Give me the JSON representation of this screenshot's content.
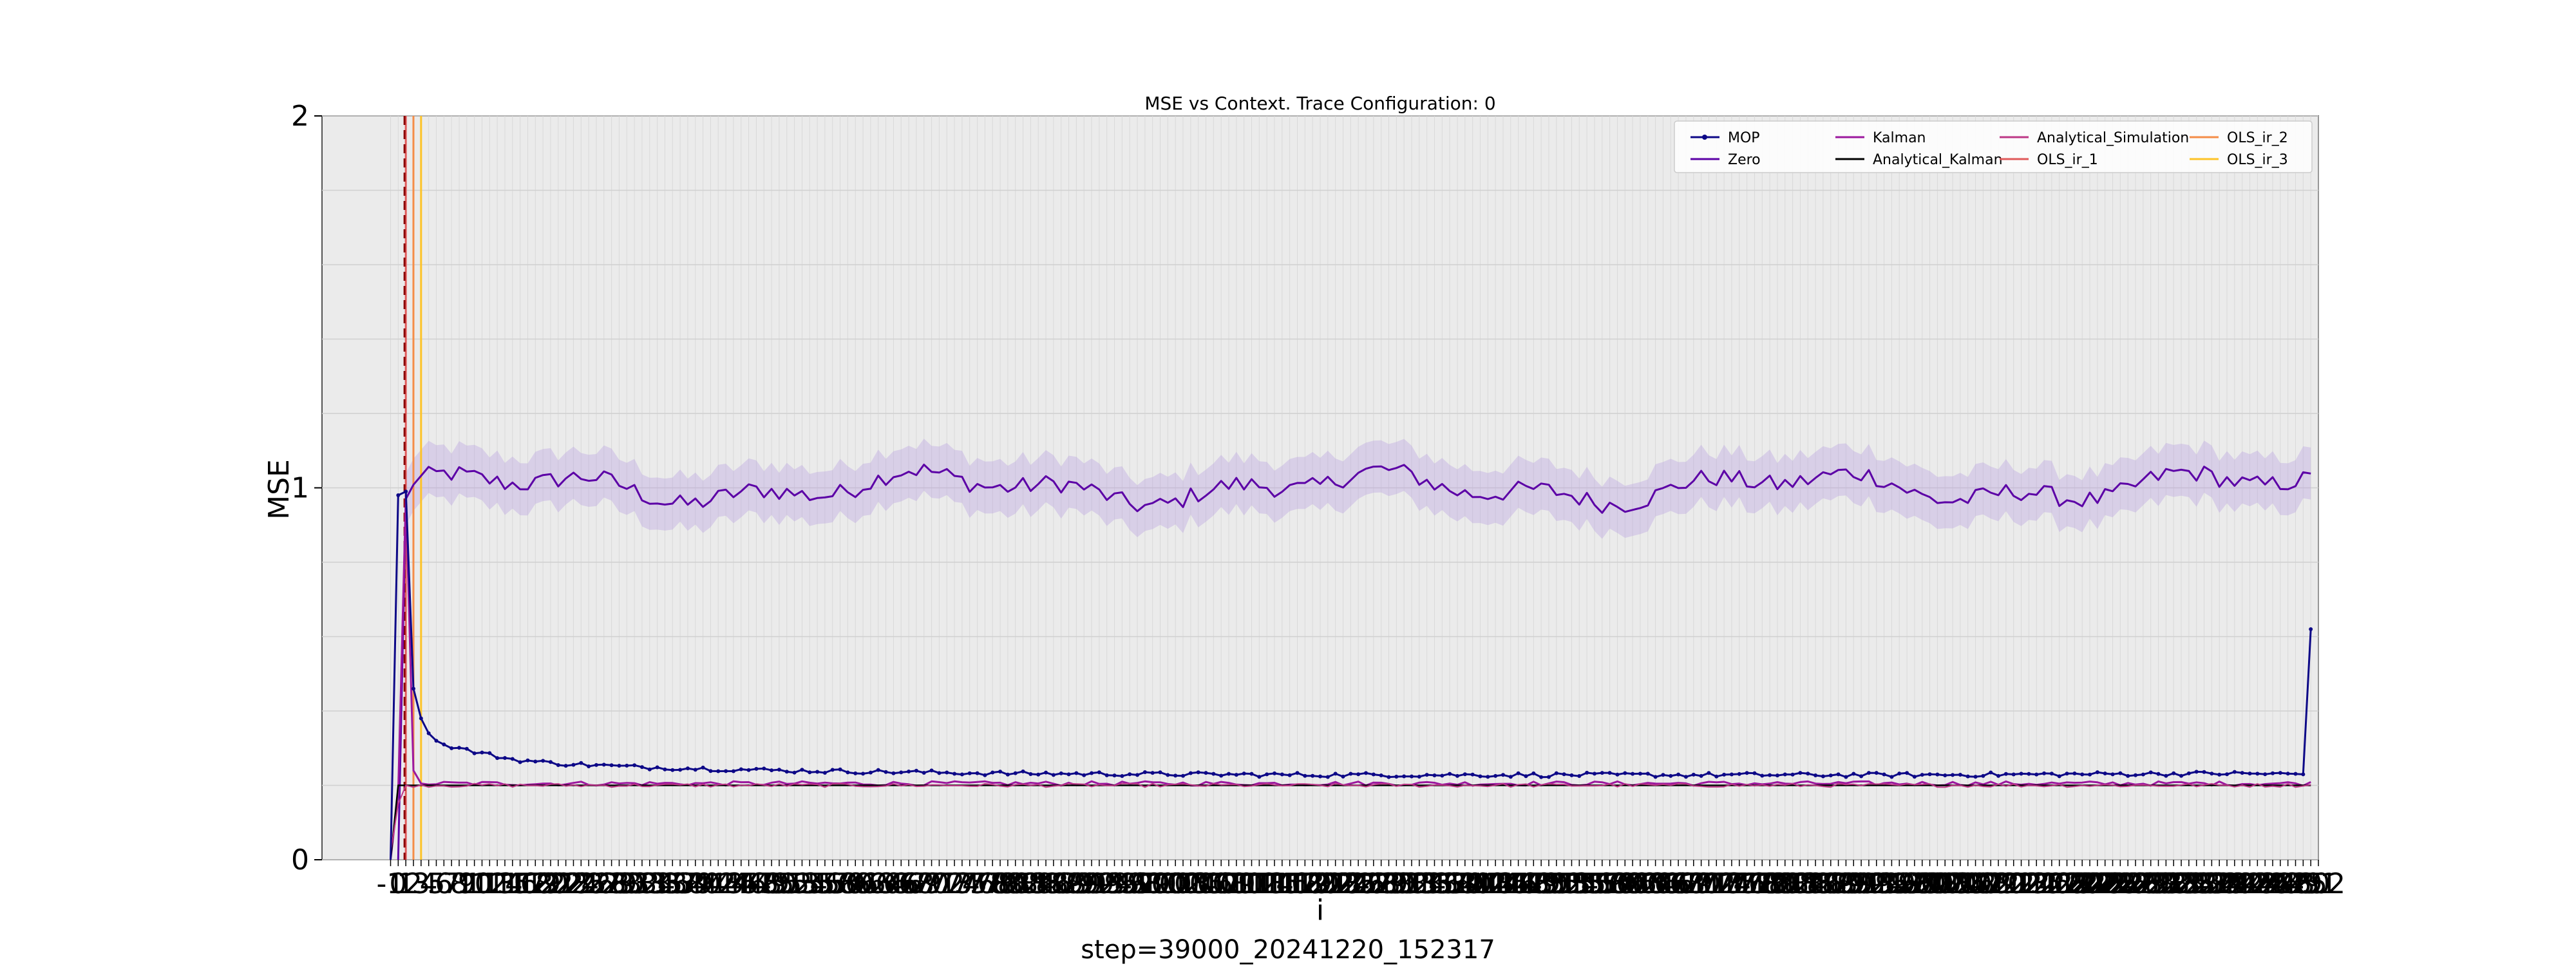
{
  "chart_data": {
    "type": "line",
    "title": "MSE vs Context. Trace Configuration: 0",
    "xlabel": "i",
    "ylabel": "MSE",
    "footer": "step=39000_20241220_152317",
    "xlim": [
      -10,
      252
    ],
    "ylim": [
      0,
      2
    ],
    "yticks": [
      "0",
      "1",
      "2"
    ],
    "xtick_labels_note": "dense overlapping integer ticks from -1 to 252",
    "grid": true,
    "legend_position": "top-right",
    "legend_columns": 4,
    "series": [
      {
        "name": "MOP",
        "color": "#0d0887",
        "marker": "dot",
        "kind": "mop"
      },
      {
        "name": "Zero",
        "color": "#5c01a6",
        "kind": "zero"
      },
      {
        "name": "Kalman",
        "color": "#9c179e",
        "kind": "kalman"
      },
      {
        "name": "Analytical_Kalman",
        "color": "#000000",
        "kind": "analytical_kalman"
      },
      {
        "name": "Analytical_Simulation",
        "color": "#bd3786",
        "kind": "analytical_sim"
      },
      {
        "name": "OLS_ir_1",
        "color": "#e05a5a",
        "kind": "ols_vline",
        "x": 1
      },
      {
        "name": "OLS_ir_2",
        "color": "#f58d48",
        "kind": "ols_vline",
        "x": 2
      },
      {
        "name": "OLS_ir_3",
        "color": "#fdc328",
        "kind": "ols_vline",
        "x": 3
      }
    ],
    "dashed_vline_x": 1,
    "zero_mean_approx": 1.0,
    "zero_band_halfwidth": 0.07,
    "mop_start": [
      [
        0,
        0.98
      ],
      [
        1,
        0.99
      ],
      [
        2,
        0.46
      ],
      [
        3,
        0.38
      ],
      [
        4,
        0.34
      ],
      [
        5,
        0.32
      ],
      [
        6,
        0.31
      ],
      [
        8,
        0.3
      ],
      [
        10,
        0.29
      ],
      [
        15,
        0.27
      ],
      [
        20,
        0.26
      ],
      [
        30,
        0.25
      ],
      [
        50,
        0.24
      ],
      [
        80,
        0.232
      ],
      [
        120,
        0.228
      ],
      [
        200,
        0.228
      ],
      [
        240,
        0.232
      ],
      [
        250,
        0.23
      ],
      [
        251,
        0.62
      ]
    ],
    "kalman_value": 0.205,
    "analytical_kalman_value": 0.2
  }
}
